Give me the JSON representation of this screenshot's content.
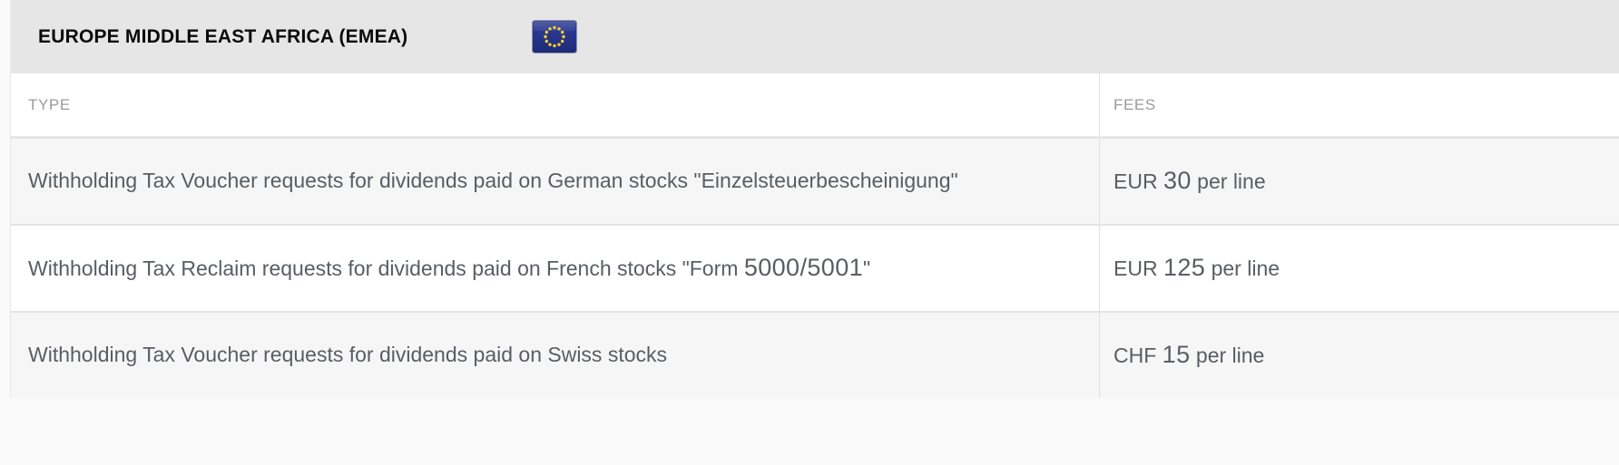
{
  "section": {
    "title": "EUROPE MIDDLE EAST AFRICA (EMEA)",
    "flag_icon": "eu-flag-icon"
  },
  "table": {
    "columns": [
      {
        "label": "TYPE"
      },
      {
        "label": "FEES"
      }
    ],
    "rows": [
      {
        "type": "Withholding Tax Voucher requests for dividends paid on German stocks \"Einzelsteuerbescheinigung\"",
        "fee": "EUR 30 per line"
      },
      {
        "type": "Withholding Tax Reclaim requests for dividends paid on French stocks \"Form 5000/5001\"",
        "fee": "EUR 125 per line"
      },
      {
        "type": "Withholding Tax Voucher requests for dividends paid on Swiss stocks",
        "fee": "CHF 15 per line"
      }
    ]
  },
  "colors": {
    "header_band": "#e6e6e6",
    "row_alt": "#f6f6f6",
    "row_divider": "#e1e4e7",
    "column_divider": "#e0e0e0",
    "body_text": "#595d63",
    "muted_header_text": "#9b9b9b",
    "title_text": "#0a0a0a",
    "flag_blue_top": "#3c4da5",
    "flag_blue_bottom": "#1f2b7b",
    "flag_star_yellow": "#f5d02c"
  }
}
